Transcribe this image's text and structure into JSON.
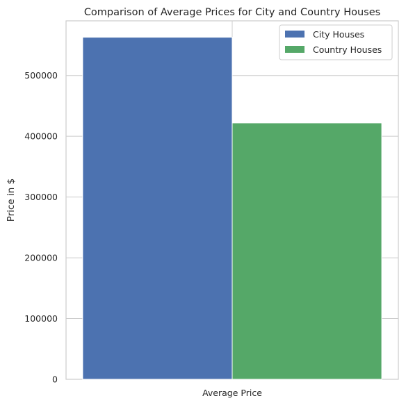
{
  "chart_data": {
    "type": "bar",
    "title": "Comparison of Average Prices for City and Country Houses",
    "categories": [
      "Average Price"
    ],
    "xlabel": "",
    "ylabel": "Price in $",
    "ylim": [
      0,
      590000
    ],
    "yticks": [
      0,
      100000,
      200000,
      300000,
      400000,
      500000
    ],
    "grid": true,
    "legend_position": "top-right",
    "series": [
      {
        "name": "City Houses",
        "values": [
          563000
        ],
        "color": "#4c72b0"
      },
      {
        "name": "Country Houses",
        "values": [
          422000
        ],
        "color": "#55a868"
      }
    ]
  }
}
